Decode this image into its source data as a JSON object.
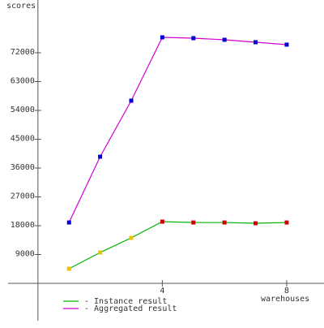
{
  "chart_data": {
    "type": "line",
    "y_label": "scores",
    "x_label": "warehouses",
    "x": [
      1,
      2,
      3,
      4,
      5,
      6,
      7,
      8
    ],
    "series": [
      {
        "name": "- Instance result",
        "color": "#00b000",
        "marker_colors": [
          "#f0c000",
          "#f0c000",
          "#f0c000",
          "#d00000",
          "#d00000",
          "#d00000",
          "#d00000",
          "#d00000"
        ],
        "values": [
          4560,
          9630,
          14200,
          19270,
          19000,
          19000,
          18760,
          19000
        ]
      },
      {
        "name": "- Aggregated result",
        "color": "#d000d0",
        "marker_colors": [
          "#0000d0",
          "#0000d0",
          "#0000d0",
          "#0000d0",
          "#0000d0",
          "#0000d0",
          "#0000d0",
          "#0000d0"
        ],
        "values": [
          19010,
          39550,
          57040,
          76820,
          76560,
          76060,
          75300,
          74540
        ]
      }
    ],
    "xlim": [
      -0.96,
      9.2
    ],
    "ylim": [
      -11660,
      88480
    ],
    "xticks": [
      4,
      8
    ],
    "yticks": [
      9000,
      18000,
      27000,
      36000,
      45000,
      54000,
      63000,
      72000
    ]
  }
}
